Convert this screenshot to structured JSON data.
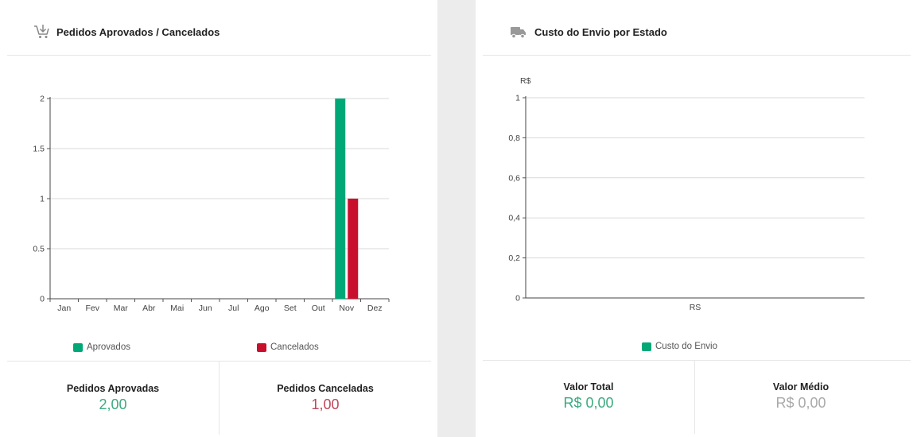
{
  "left_panel": {
    "title": "Pedidos Aprovados / Cancelados",
    "icon": "cart-icon",
    "stats": [
      {
        "label": "Pedidos Aprovadas",
        "value": "2,00",
        "color": "#3daa80"
      },
      {
        "label": "Pedidos Canceladas",
        "value": "1,00",
        "color": "#c0475a"
      }
    ]
  },
  "right_panel": {
    "title": "Custo do Envio por Estado",
    "icon": "truck-icon",
    "stats": [
      {
        "label": "Valor Total",
        "value": "R$ 0,00",
        "color": "#3daa80"
      },
      {
        "label": "Valor Médio",
        "value": "R$ 0,00",
        "color": "#aaaaaa"
      }
    ]
  },
  "chart_data": [
    {
      "type": "bar",
      "title": "Pedidos Aprovados / Cancelados",
      "categories": [
        "Jan",
        "Fev",
        "Mar",
        "Abr",
        "Mai",
        "Jun",
        "Jul",
        "Ago",
        "Set",
        "Out",
        "Nov",
        "Dez"
      ],
      "series": [
        {
          "name": "Aprovados",
          "color": "#00a878",
          "values": [
            0,
            0,
            0,
            0,
            0,
            0,
            0,
            0,
            0,
            0,
            2,
            0
          ]
        },
        {
          "name": "Cancelados",
          "color": "#c8102e",
          "values": [
            0,
            0,
            0,
            0,
            0,
            0,
            0,
            0,
            0,
            0,
            1,
            0
          ]
        }
      ],
      "y_ticks": [
        "0",
        "0.5",
        "1",
        "1.5",
        "2"
      ],
      "ylim": [
        0,
        2
      ],
      "grid": true,
      "legend": "bottom"
    },
    {
      "type": "bar",
      "title": "Custo do Envio por Estado",
      "categories": [
        "RS"
      ],
      "series": [
        {
          "name": "Custo do Envio",
          "color": "#00a878",
          "values": [
            0
          ]
        }
      ],
      "ylabel": "R$",
      "y_ticks": [
        "0",
        "0,2",
        "0,4",
        "0,6",
        "0,8",
        "1"
      ],
      "ylim": [
        0,
        1
      ],
      "grid": true,
      "legend": "bottom"
    }
  ]
}
